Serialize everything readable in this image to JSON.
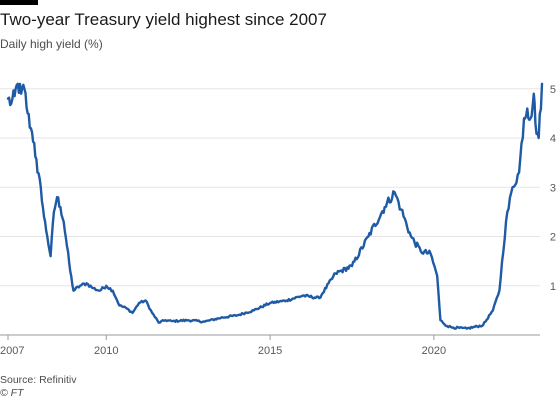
{
  "chart_data": {
    "type": "line",
    "title": "Two-year Treasury yield highest since 2007",
    "subtitle": "Daily high yield (%)",
    "x_ticks": [
      "2007",
      "2010",
      "2015",
      "2020"
    ],
    "y_ticks": [
      "1",
      "2",
      "3",
      "4",
      "5"
    ],
    "xlim": [
      2007.0,
      2023.3
    ],
    "ylim": [
      0,
      5.3
    ],
    "grid": "horizontal",
    "y_axis_side": "right",
    "colors": {
      "line": "#1f5ba5",
      "grid": "#e5e5e5",
      "text": "#1a1a1a",
      "muted": "#595959"
    },
    "series": [
      {
        "x": [
          2007.0,
          2007.1,
          2007.2,
          2007.3,
          2007.4,
          2007.5,
          2007.6,
          2007.7,
          2007.8,
          2007.9,
          2008.0,
          2008.1,
          2008.2,
          2008.3,
          2008.4,
          2008.5,
          2008.6,
          2008.7,
          2008.8,
          2008.9,
          2009.0,
          2009.2,
          2009.4,
          2009.6,
          2009.8,
          2010.0,
          2010.2,
          2010.4,
          2010.6,
          2010.8,
          2011.0,
          2011.2,
          2011.4,
          2011.6,
          2011.8,
          2012.0,
          2012.5,
          2013.0,
          2013.5,
          2014.0,
          2014.5,
          2015.0,
          2015.5,
          2016.0,
          2016.5,
          2017.0,
          2017.5,
          2018.0,
          2018.5,
          2018.8,
          2019.0,
          2019.3,
          2019.6,
          2019.9,
          2020.1,
          2020.2,
          2020.4,
          2020.6,
          2021.0,
          2021.5,
          2021.8,
          2022.0,
          2022.2,
          2022.4,
          2022.6,
          2022.75,
          2022.85,
          2022.95,
          2023.05,
          2023.1,
          2023.2,
          2023.3
        ],
        "values": [
          4.8,
          4.7,
          4.85,
          5.1,
          4.9,
          5.0,
          4.5,
          4.2,
          3.9,
          3.3,
          3.0,
          2.4,
          2.0,
          1.6,
          2.5,
          2.8,
          2.6,
          2.3,
          1.8,
          1.3,
          0.9,
          1.0,
          1.05,
          0.95,
          0.9,
          1.0,
          0.9,
          0.6,
          0.55,
          0.45,
          0.65,
          0.7,
          0.45,
          0.25,
          0.3,
          0.28,
          0.3,
          0.27,
          0.35,
          0.4,
          0.5,
          0.65,
          0.7,
          0.8,
          0.75,
          1.25,
          1.4,
          2.0,
          2.6,
          2.9,
          2.55,
          2.0,
          1.7,
          1.65,
          1.2,
          0.3,
          0.18,
          0.15,
          0.13,
          0.2,
          0.5,
          0.9,
          2.3,
          3.0,
          3.3,
          4.4,
          4.6,
          4.4,
          4.9,
          4.3,
          4.0,
          5.1
        ]
      }
    ]
  },
  "footer": {
    "source": "Source: Refinitiv",
    "credit": "© FT"
  }
}
